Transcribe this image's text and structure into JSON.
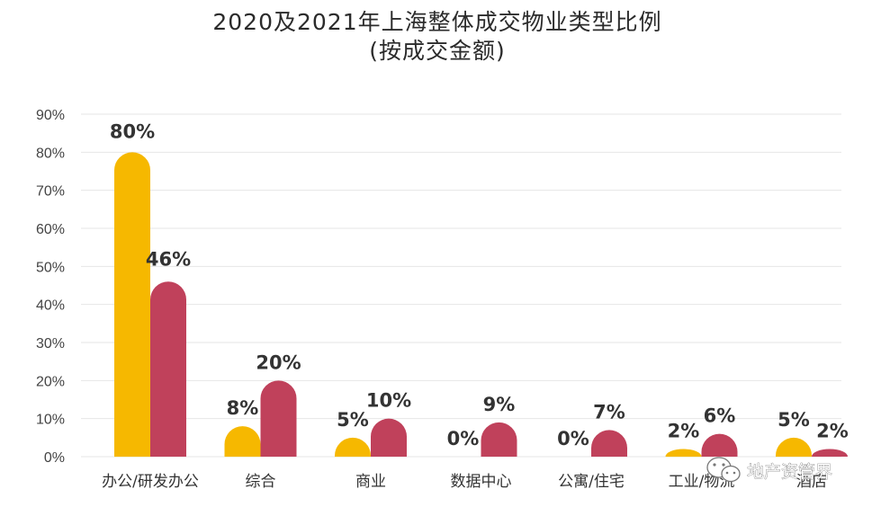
{
  "chart_data": {
    "type": "bar",
    "title_lines": [
      "2020及2021年上海整体成交物业类型比例",
      "(按成交金额)"
    ],
    "categories": [
      "办公/研发办公",
      "综合",
      "商业",
      "数据中心",
      "公寓/住宅",
      "工业/物流",
      "酒店"
    ],
    "series": [
      {
        "values": [
          80,
          8,
          5,
          0,
          0,
          2,
          5
        ],
        "labels": [
          "80%",
          "8%",
          "5%",
          "0%",
          "0%",
          "2%",
          "5%"
        ],
        "color": "#f6b800"
      },
      {
        "values": [
          46,
          20,
          10,
          9,
          7,
          6,
          2
        ],
        "labels": [
          "46%",
          "20%",
          "10%",
          "9%",
          "7%",
          "6%",
          "2%"
        ],
        "color": "#c0415b"
      }
    ],
    "yticks": [
      "0%",
      "10%",
      "20%",
      "30%",
      "40%",
      "50%",
      "60%",
      "70%",
      "80%",
      "90%"
    ],
    "ylim": [
      0,
      90
    ],
    "unit": "%",
    "grid": true,
    "legend": "none"
  },
  "watermark": {
    "text": "地产资管界",
    "icon": "wechat-icon"
  }
}
